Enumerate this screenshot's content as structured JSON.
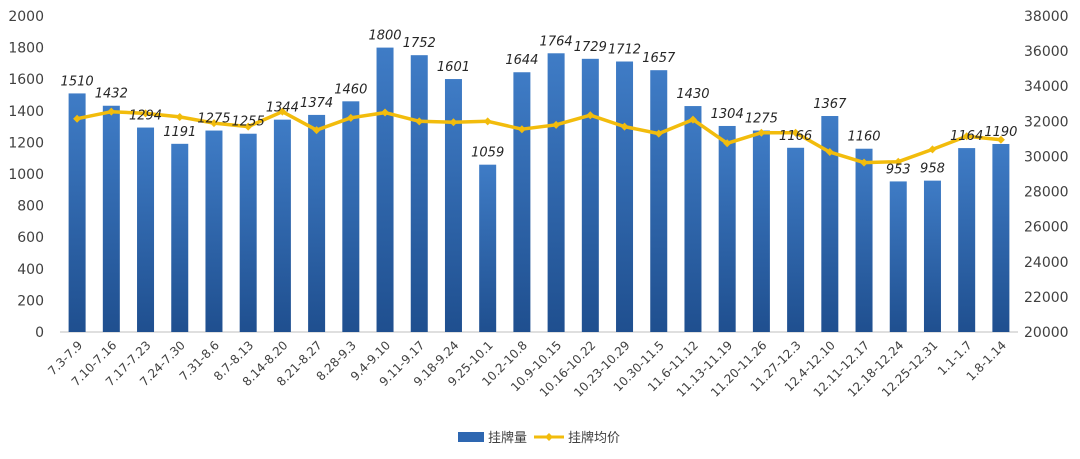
{
  "chart_data": {
    "type": "bar",
    "categories": [
      "7.3-7.9",
      "7.10-7.16",
      "7.17-7.23",
      "7.24-7.30",
      "7.31-8.6",
      "8.7-8.13",
      "8.14-8.20",
      "8.21-8.27",
      "8.28-9.3",
      "9.4-9.10",
      "9.11-9.17",
      "9.18-9.24",
      "9.25-10.1",
      "10.2-10.8",
      "10.9-10.15",
      "10.16-10.22",
      "10.23-10.29",
      "10.30-11.5",
      "11.6-11.12",
      "11.13-11.19",
      "11.20-11.26",
      "11.27-12.3",
      "12.4-12.10",
      "12.11-12.17",
      "12.18-12.24",
      "12.25-12.31",
      "1.1-1.7",
      "1.8-1.14"
    ],
    "series": [
      {
        "name": "挂牌量",
        "type": "bar",
        "axis": "left",
        "color": "#2E67B1",
        "values": [
          1510,
          1432,
          1294,
          1191,
          1275,
          1255,
          1344,
          1374,
          1460,
          1800,
          1752,
          1601,
          1059,
          1644,
          1764,
          1729,
          1712,
          1657,
          1430,
          1304,
          1275,
          1166,
          1367,
          1160,
          953,
          958,
          1164,
          1190
        ]
      },
      {
        "name": "挂牌均价",
        "type": "line",
        "axis": "right",
        "color": "#F2BC0C",
        "values": [
          32150,
          32550,
          32450,
          32250,
          31900,
          31700,
          32550,
          31500,
          32200,
          32500,
          32000,
          31950,
          32000,
          31550,
          31800,
          32350,
          31700,
          31300,
          32100,
          30750,
          31350,
          31350,
          30250,
          29650,
          29700,
          30400,
          31150,
          30950
        ]
      }
    ],
    "ylim": [
      0,
      2000
    ],
    "y_ticks": [
      "0",
      "200",
      "400",
      "600",
      "800",
      "1000",
      "1200",
      "1400",
      "1600",
      "1800",
      "2000"
    ],
    "y2lim": [
      20000,
      38000
    ],
    "y2_ticks": [
      "20000",
      "22000",
      "24000",
      "26000",
      "28000",
      "30000",
      "32000",
      "34000",
      "36000",
      "38000"
    ],
    "data_labels": [
      "1510",
      "1432",
      "1294",
      "1191",
      "1275",
      "1255",
      "1344",
      "1374",
      "1460",
      "1800",
      "1752",
      "1601",
      "1059",
      "1644",
      "1764",
      "1729",
      "1712",
      "1657",
      "1430",
      "1304",
      "1275",
      "1166",
      "1367",
      "1160",
      "953",
      "958",
      "1164",
      "1190"
    ],
    "grid": false,
    "legend_position": "bottom",
    "legend": [
      {
        "name": "挂牌量",
        "kind": "bar",
        "color": "#2E67B1"
      },
      {
        "name": "挂牌均价",
        "kind": "line",
        "color": "#F2BC0C"
      }
    ]
  }
}
